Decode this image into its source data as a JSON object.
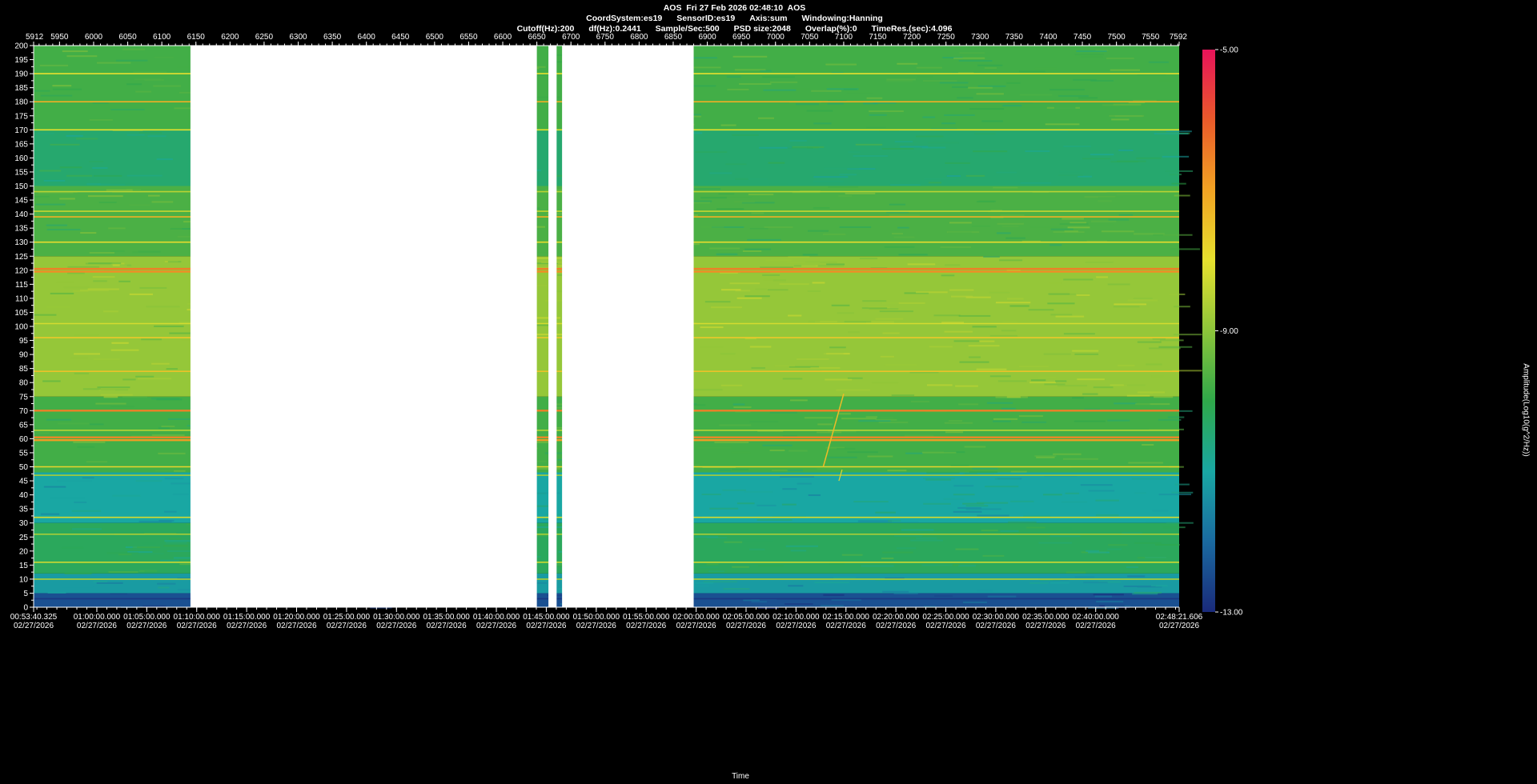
{
  "header": {
    "line1": "AOS  Fri 27 Feb 2026 02:48:10  AOS",
    "line2_items": [
      "CoordSystem:es19",
      "SensorID:es19",
      "Axis:sum",
      "Windowing:Hanning"
    ],
    "line3_items": [
      "Cutoff(Hz):200",
      "df(Hz):0.2441",
      "Sample/Sec:500",
      "PSD size:2048",
      "Overlap(%):0",
      "TimeRes.(sec):4.096"
    ]
  },
  "colors": {
    "background": "#000000",
    "gap": "#ffffff",
    "colormap": [
      "#1a2a7a",
      "#1a6aa0",
      "#19a7a3",
      "#2fa84a",
      "#8cc43a",
      "#e6e12e",
      "#f2a323",
      "#ea5a2a",
      "#e8135a"
    ]
  },
  "chart_data": {
    "type": "heatmap",
    "title": "AOS  Fri 27 Feb 2026 02:48:10  AOS",
    "xlabel": "Time",
    "ylabel": "",
    "colorbar_label": "Amplitude(Log10(g^2/Hz))",
    "y_range": [
      0,
      200
    ],
    "y_ticks": [
      0,
      5,
      10,
      15,
      20,
      25,
      30,
      35,
      40,
      45,
      50,
      55,
      60,
      65,
      70,
      75,
      80,
      85,
      90,
      95,
      100,
      105,
      110,
      115,
      120,
      125,
      130,
      135,
      140,
      145,
      150,
      155,
      160,
      165,
      170,
      175,
      180,
      185,
      190,
      195,
      200
    ],
    "top_axis_ticks": [
      "5912",
      "5950",
      "6000",
      "6050",
      "6100",
      "6150",
      "6200",
      "6250",
      "6300",
      "6350",
      "6400",
      "6450",
      "6500",
      "6550",
      "6600",
      "6650",
      "6700",
      "6750",
      "6800",
      "6850",
      "6900",
      "6950",
      "7000",
      "7050",
      "7100",
      "7150",
      "7200",
      "7250",
      "7300",
      "7350",
      "7400",
      "7450",
      "7500",
      "7550",
      "7592"
    ],
    "bottom_axis_ticks": [
      {
        "time": "00:53:40.325",
        "date": "02/27/2026"
      },
      {
        "time": "01:00:00.000",
        "date": "02/27/2026"
      },
      {
        "time": "01:05:00.000",
        "date": "02/27/2026"
      },
      {
        "time": "01:10:00.000",
        "date": "02/27/2026"
      },
      {
        "time": "01:15:00.000",
        "date": "02/27/2026"
      },
      {
        "time": "01:20:00.000",
        "date": "02/27/2026"
      },
      {
        "time": "01:25:00.000",
        "date": "02/27/2026"
      },
      {
        "time": "01:30:00.000",
        "date": "02/27/2026"
      },
      {
        "time": "01:35:00.000",
        "date": "02/27/2026"
      },
      {
        "time": "01:40:00.000",
        "date": "02/27/2026"
      },
      {
        "time": "01:45:00.000",
        "date": "02/27/2026"
      },
      {
        "time": "01:50:00.000",
        "date": "02/27/2026"
      },
      {
        "time": "01:55:00.000",
        "date": "02/27/2026"
      },
      {
        "time": "02:00:00.000",
        "date": "02/27/2026"
      },
      {
        "time": "02:05:00.000",
        "date": "02/27/2026"
      },
      {
        "time": "02:10:00.000",
        "date": "02/27/2026"
      },
      {
        "time": "02:15:00.000",
        "date": "02/27/2026"
      },
      {
        "time": "02:20:00.000",
        "date": "02/27/2026"
      },
      {
        "time": "02:25:00.000",
        "date": "02/27/2026"
      },
      {
        "time": "02:30:00.000",
        "date": "02/27/2026"
      },
      {
        "time": "02:35:00.000",
        "date": "02/27/2026"
      },
      {
        "time": "02:40:00.000",
        "date": "02/27/2026"
      },
      {
        "time": "02:48:21.606",
        "date": "02/27/2026"
      }
    ],
    "colorbar": {
      "max": -5.0,
      "mid": -9.0,
      "min": -13.0,
      "max_label": "-5.00",
      "mid_label": "-9.00",
      "min_label": "-13.00"
    },
    "data_gaps_top_axis": [
      [
        6142,
        6650
      ],
      [
        6667,
        6679
      ],
      [
        6687,
        6880
      ]
    ],
    "frequency_bands_hz": [
      {
        "from": 0,
        "to": 5,
        "level": -12.4
      },
      {
        "from": 5,
        "to": 12,
        "level": -11.2
      },
      {
        "from": 12,
        "to": 30,
        "level": -10.2
      },
      {
        "from": 30,
        "to": 48,
        "level": -11.0
      },
      {
        "from": 48,
        "to": 75,
        "level": -9.8
      },
      {
        "from": 75,
        "to": 125,
        "level": -8.9
      },
      {
        "from": 125,
        "to": 150,
        "level": -9.7
      },
      {
        "from": 150,
        "to": 170,
        "level": -10.4
      },
      {
        "from": 170,
        "to": 200,
        "level": -9.8
      }
    ],
    "tonal_lines_hz": [
      {
        "freq": 3,
        "level": -12.8
      },
      {
        "freq": 10,
        "level": -8.6
      },
      {
        "freq": 16,
        "level": -8.3
      },
      {
        "freq": 26,
        "level": -8.6
      },
      {
        "freq": 32,
        "level": -8.2
      },
      {
        "freq": 47,
        "level": -8.7
      },
      {
        "freq": 50,
        "level": -7.8
      },
      {
        "freq": 59.5,
        "level": -6.9
      },
      {
        "freq": 60.5,
        "level": -6.6
      },
      {
        "freq": 63,
        "level": -8.4
      },
      {
        "freq": 70,
        "level": -6.5
      },
      {
        "freq": 84,
        "level": -7.5
      },
      {
        "freq": 96,
        "level": -7.6
      },
      {
        "freq": 101,
        "level": -8.2
      },
      {
        "freq": 119.5,
        "level": -6.7
      },
      {
        "freq": 120.5,
        "level": -6.5
      },
      {
        "freq": 130,
        "level": -7.9
      },
      {
        "freq": 139,
        "level": -7.2
      },
      {
        "freq": 141,
        "level": -8.4
      },
      {
        "freq": 148,
        "level": -8.5
      },
      {
        "freq": 170,
        "level": -8.0
      },
      {
        "freq": 180,
        "level": -7.2
      },
      {
        "freq": 190,
        "level": -8.0
      }
    ],
    "sweep_event": {
      "top_axis_from": 7070,
      "top_axis_to": 7100,
      "freq_from": 50,
      "freq_to": 76
    }
  }
}
